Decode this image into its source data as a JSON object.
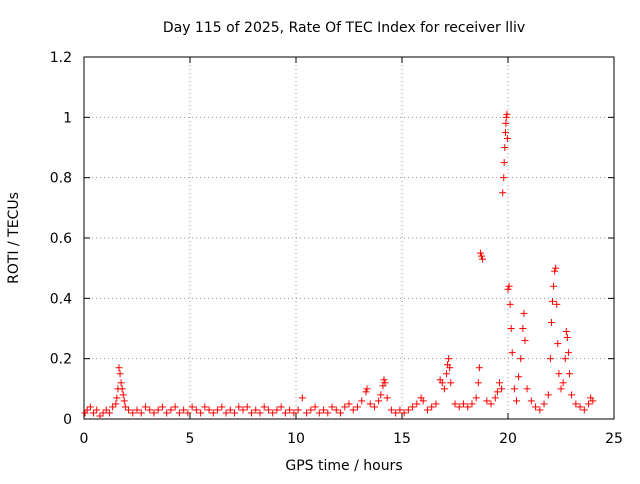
{
  "chart_data": {
    "type": "scatter",
    "title": "Day 115 of 2025, Rate Of TEC Index for receiver lliv",
    "xlabel": "GPS time / hours",
    "ylabel": "ROTI / TECUs",
    "xlim": [
      0,
      25
    ],
    "ylim": [
      0,
      1.2
    ],
    "xticks": [
      0,
      5,
      10,
      15,
      20,
      25
    ],
    "yticks": [
      0,
      0.2,
      0.4,
      0.6,
      0.8,
      1,
      1.2
    ],
    "xtick_labels": [
      "0",
      "5",
      "10",
      "15",
      "20",
      "25"
    ],
    "ytick_labels": [
      "0",
      "0.2",
      "0.4",
      "0.6",
      "0.8",
      "1",
      "1.2"
    ],
    "grid": true,
    "legend": "none",
    "marker": "+",
    "color": "#ff0000",
    "series": [
      {
        "points": [
          [
            0.05,
            0.02
          ],
          [
            0.15,
            0.03
          ],
          [
            0.3,
            0.04
          ],
          [
            0.45,
            0.02
          ],
          [
            0.6,
            0.03
          ],
          [
            0.75,
            0.01
          ],
          [
            0.9,
            0.02
          ],
          [
            1.05,
            0.03
          ],
          [
            1.2,
            0.02
          ],
          [
            1.35,
            0.04
          ],
          [
            1.5,
            0.05
          ],
          [
            1.55,
            0.07
          ],
          [
            1.6,
            0.1
          ],
          [
            1.65,
            0.17
          ],
          [
            1.7,
            0.15
          ],
          [
            1.75,
            0.12
          ],
          [
            1.8,
            0.1
          ],
          [
            1.85,
            0.08
          ],
          [
            1.9,
            0.06
          ],
          [
            1.95,
            0.04
          ],
          [
            2.1,
            0.03
          ],
          [
            2.3,
            0.02
          ],
          [
            2.5,
            0.03
          ],
          [
            2.7,
            0.02
          ],
          [
            2.9,
            0.04
          ],
          [
            3.1,
            0.03
          ],
          [
            3.3,
            0.02
          ],
          [
            3.5,
            0.03
          ],
          [
            3.7,
            0.04
          ],
          [
            3.9,
            0.02
          ],
          [
            4.1,
            0.03
          ],
          [
            4.3,
            0.04
          ],
          [
            4.5,
            0.02
          ],
          [
            4.7,
            0.03
          ],
          [
            4.9,
            0.02
          ],
          [
            5.1,
            0.04
          ],
          [
            5.3,
            0.03
          ],
          [
            5.5,
            0.02
          ],
          [
            5.7,
            0.04
          ],
          [
            5.9,
            0.03
          ],
          [
            6.1,
            0.02
          ],
          [
            6.3,
            0.03
          ],
          [
            6.5,
            0.04
          ],
          [
            6.7,
            0.02
          ],
          [
            6.9,
            0.03
          ],
          [
            7.1,
            0.02
          ],
          [
            7.3,
            0.04
          ],
          [
            7.5,
            0.03
          ],
          [
            7.7,
            0.04
          ],
          [
            7.9,
            0.02
          ],
          [
            8.1,
            0.03
          ],
          [
            8.3,
            0.02
          ],
          [
            8.5,
            0.04
          ],
          [
            8.7,
            0.03
          ],
          [
            8.9,
            0.02
          ],
          [
            9.1,
            0.03
          ],
          [
            9.3,
            0.04
          ],
          [
            9.5,
            0.02
          ],
          [
            9.7,
            0.03
          ],
          [
            9.9,
            0.02
          ],
          [
            10.1,
            0.03
          ],
          [
            10.3,
            0.07
          ],
          [
            10.5,
            0.02
          ],
          [
            10.7,
            0.03
          ],
          [
            10.9,
            0.04
          ],
          [
            11.1,
            0.02
          ],
          [
            11.3,
            0.03
          ],
          [
            11.5,
            0.02
          ],
          [
            11.7,
            0.04
          ],
          [
            11.9,
            0.03
          ],
          [
            12.1,
            0.02
          ],
          [
            12.3,
            0.04
          ],
          [
            12.5,
            0.05
          ],
          [
            12.7,
            0.03
          ],
          [
            12.9,
            0.04
          ],
          [
            13.1,
            0.06
          ],
          [
            13.3,
            0.09
          ],
          [
            13.35,
            0.1
          ],
          [
            13.5,
            0.05
          ],
          [
            13.7,
            0.04
          ],
          [
            13.9,
            0.06
          ],
          [
            14.0,
            0.08
          ],
          [
            14.1,
            0.11
          ],
          [
            14.15,
            0.13
          ],
          [
            14.2,
            0.12
          ],
          [
            14.3,
            0.07
          ],
          [
            14.5,
            0.03
          ],
          [
            14.7,
            0.02
          ],
          [
            14.9,
            0.03
          ],
          [
            15.1,
            0.02
          ],
          [
            15.3,
            0.03
          ],
          [
            15.5,
            0.04
          ],
          [
            15.7,
            0.05
          ],
          [
            15.9,
            0.07
          ],
          [
            16.0,
            0.06
          ],
          [
            16.2,
            0.03
          ],
          [
            16.4,
            0.04
          ],
          [
            16.6,
            0.05
          ],
          [
            16.8,
            0.13
          ],
          [
            16.9,
            0.12
          ],
          [
            17.0,
            0.1
          ],
          [
            17.1,
            0.15
          ],
          [
            17.15,
            0.18
          ],
          [
            17.2,
            0.2
          ],
          [
            17.25,
            0.17
          ],
          [
            17.3,
            0.12
          ],
          [
            17.5,
            0.05
          ],
          [
            17.7,
            0.04
          ],
          [
            17.9,
            0.05
          ],
          [
            18.1,
            0.04
          ],
          [
            18.3,
            0.05
          ],
          [
            18.5,
            0.07
          ],
          [
            18.6,
            0.12
          ],
          [
            18.65,
            0.17
          ],
          [
            18.7,
            0.55
          ],
          [
            18.75,
            0.54
          ],
          [
            18.8,
            0.53
          ],
          [
            19.0,
            0.06
          ],
          [
            19.2,
            0.05
          ],
          [
            19.4,
            0.07
          ],
          [
            19.5,
            0.09
          ],
          [
            19.6,
            0.12
          ],
          [
            19.7,
            0.1
          ],
          [
            19.75,
            0.75
          ],
          [
            19.8,
            0.8
          ],
          [
            19.82,
            0.85
          ],
          [
            19.85,
            0.9
          ],
          [
            19.88,
            0.95
          ],
          [
            19.9,
            0.98
          ],
          [
            19.92,
            1.0
          ],
          [
            19.95,
            1.01
          ],
          [
            19.97,
            0.93
          ],
          [
            20.0,
            0.43
          ],
          [
            20.05,
            0.44
          ],
          [
            20.1,
            0.38
          ],
          [
            20.15,
            0.3
          ],
          [
            20.2,
            0.22
          ],
          [
            20.3,
            0.1
          ],
          [
            20.4,
            0.06
          ],
          [
            20.5,
            0.14
          ],
          [
            20.6,
            0.2
          ],
          [
            20.7,
            0.3
          ],
          [
            20.75,
            0.35
          ],
          [
            20.8,
            0.26
          ],
          [
            20.9,
            0.1
          ],
          [
            21.1,
            0.06
          ],
          [
            21.3,
            0.04
          ],
          [
            21.5,
            0.03
          ],
          [
            21.7,
            0.05
          ],
          [
            21.9,
            0.08
          ],
          [
            22.0,
            0.2
          ],
          [
            22.05,
            0.32
          ],
          [
            22.1,
            0.39
          ],
          [
            22.15,
            0.44
          ],
          [
            22.2,
            0.49
          ],
          [
            22.25,
            0.5
          ],
          [
            22.3,
            0.38
          ],
          [
            22.35,
            0.25
          ],
          [
            22.4,
            0.15
          ],
          [
            22.5,
            0.1
          ],
          [
            22.6,
            0.12
          ],
          [
            22.7,
            0.2
          ],
          [
            22.75,
            0.29
          ],
          [
            22.8,
            0.27
          ],
          [
            22.85,
            0.22
          ],
          [
            22.9,
            0.15
          ],
          [
            23.0,
            0.08
          ],
          [
            23.2,
            0.05
          ],
          [
            23.4,
            0.04
          ],
          [
            23.6,
            0.03
          ],
          [
            23.8,
            0.05
          ],
          [
            23.9,
            0.07
          ],
          [
            24.0,
            0.06
          ]
        ]
      }
    ]
  }
}
